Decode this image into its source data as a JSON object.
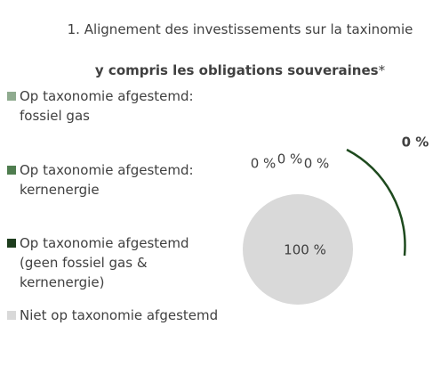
{
  "chart_data": {
    "type": "pie",
    "title": "1. Alignement des investissements sur la taxinomie",
    "subtitle": "y compris les obligations souveraines",
    "subtitle_note": "*",
    "annotation": "0 %",
    "categories": [
      "Op taxonomie afgestemd: fossiel gas",
      "Op taxonomie afgestemd: kernenergie",
      "Op taxonomie afgestemd (geen fossiel gas & kernenergie)",
      "Niet op taxonomie afgestemd"
    ],
    "values": [
      0,
      0,
      0,
      100
    ],
    "value_labels": [
      "0 %",
      "0 %",
      "0 %",
      "100 %"
    ],
    "colors": [
      "#8fab8f",
      "#4f7d4f",
      "#1e3d1e",
      "#d9d9d9"
    ],
    "annotation_color": "#2e5e2e"
  }
}
